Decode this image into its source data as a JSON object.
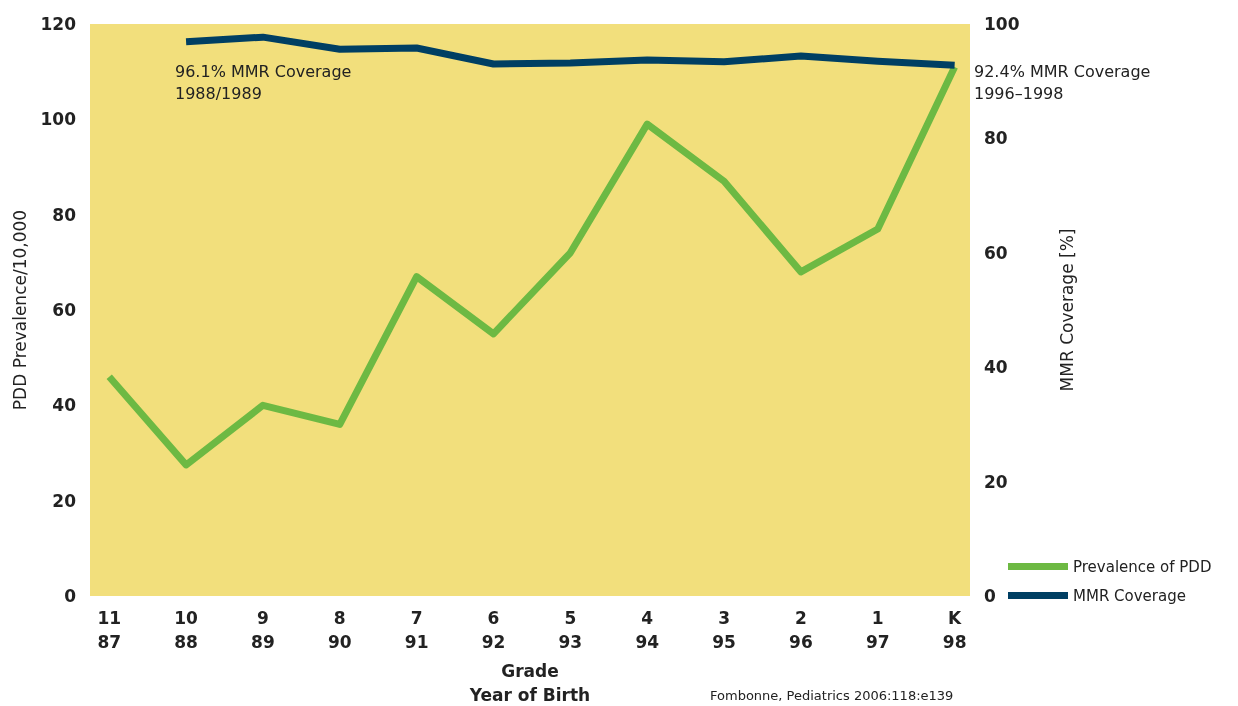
{
  "chart_data": {
    "type": "line",
    "categories": [
      "11\n87",
      "10\n88",
      "9\n89",
      "8\n90",
      "7\n91",
      "6\n92",
      "5\n93",
      "4\n94",
      "3\n95",
      "2\n96",
      "1\n97",
      "K\n98"
    ],
    "series": [
      {
        "name": "Prevalence of PDD",
        "color": "#6db943",
        "values": [
          46,
          27.5,
          40,
          36,
          67,
          55,
          72,
          99,
          87,
          68,
          77,
          111
        ]
      },
      {
        "name": "MMR Coverage",
        "color": "#003f63",
        "axis": "y2",
        "values": [
          null,
          96.9,
          97.7,
          95.6,
          95.8,
          93.0,
          93.2,
          93.7,
          93.4,
          94.4,
          93.5,
          92.8
        ]
      }
    ],
    "xlabel": "Grade\nYear of Birth",
    "ylabel": "PDD Prevalence/10,000",
    "y2label": "MMR Coverage [%]",
    "ylim": [
      0,
      120
    ],
    "yticks": [
      0,
      20,
      40,
      60,
      80,
      100,
      120
    ],
    "y2lim": [
      0,
      100
    ],
    "y2ticks": [
      0,
      20,
      40,
      60,
      80,
      100
    ],
    "annotations": [
      "96.1% MMR Coverage\n1988/1989",
      "92.4% MMR Coverage\n1996–1998",
      "Fombonne, Pediatrics 2006:118:e139"
    ],
    "legend": "bottom right",
    "grid": false,
    "marker": "none",
    "line_style": "solid"
  }
}
